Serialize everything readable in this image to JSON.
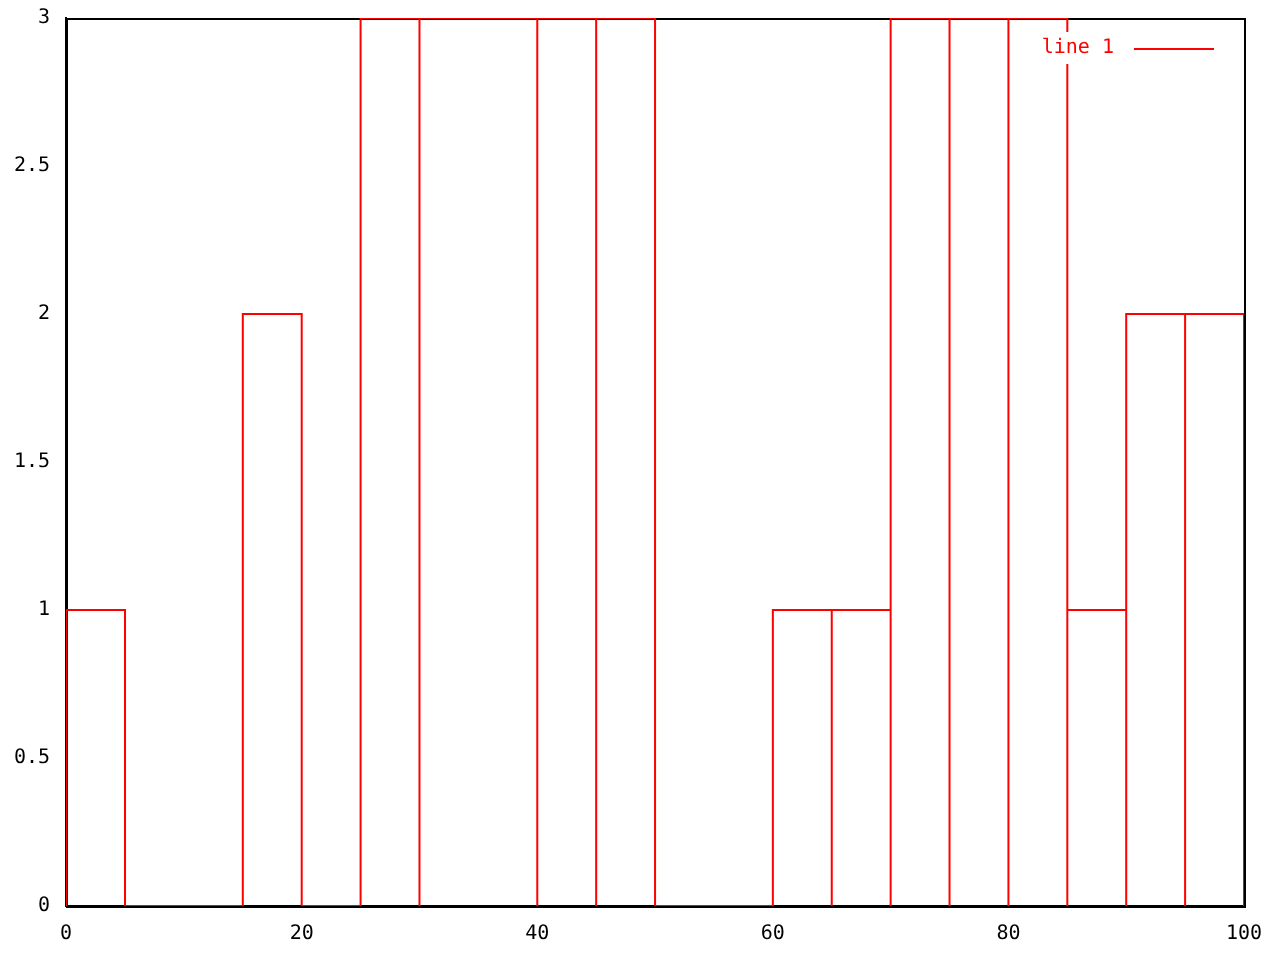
{
  "chart_data": {
    "type": "histogram",
    "bins": [
      0,
      5,
      15,
      20,
      25,
      30,
      40,
      45,
      50,
      60,
      65,
      70,
      75,
      80,
      85,
      90,
      95,
      100
    ],
    "series": [
      {
        "name": "line 1",
        "color": "#ff0000",
        "values": [
          1,
          0,
          2,
          0,
          3,
          3,
          3,
          3,
          0,
          1,
          1,
          3,
          3,
          3,
          1,
          2,
          2
        ]
      }
    ],
    "xlim": [
      0,
      100
    ],
    "xticks": [
      0,
      20,
      40,
      60,
      80,
      100
    ],
    "ylim": [
      0,
      3
    ],
    "yticks": [
      0,
      0.5,
      1,
      1.5,
      2,
      2.5,
      3
    ],
    "grid": false,
    "legend": "top right"
  }
}
